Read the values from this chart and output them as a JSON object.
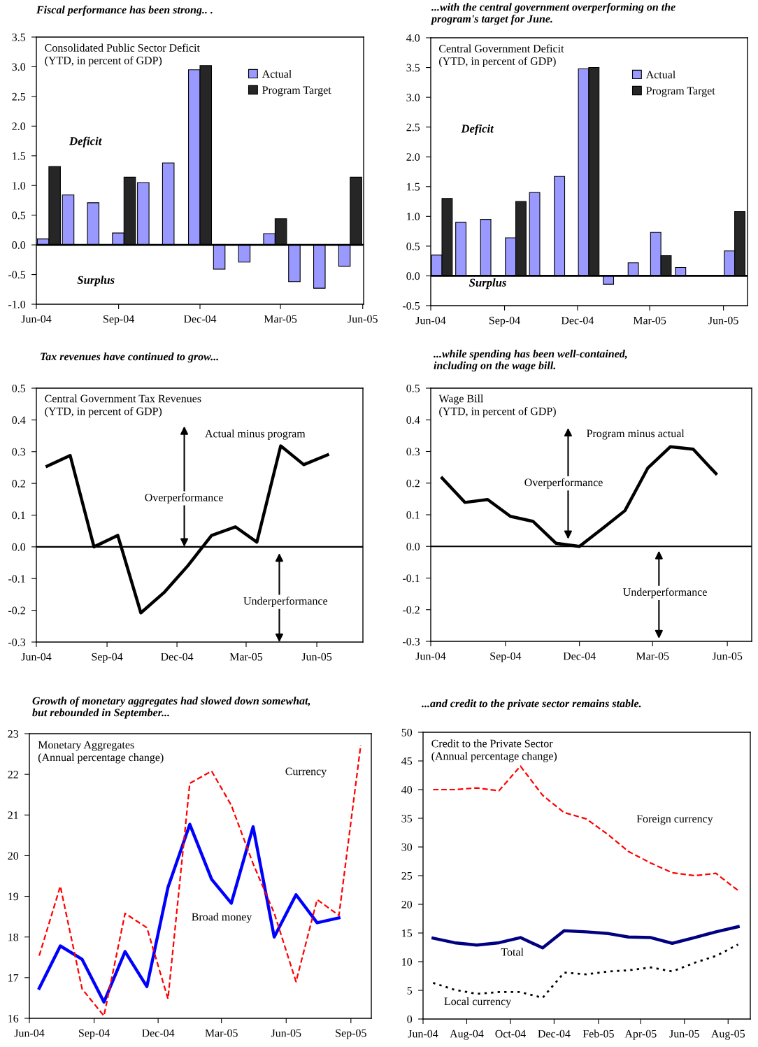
{
  "chart_data": [
    {
      "type": "bar",
      "title": "Fiscal performance has been strong.. .",
      "subtitle": "Consolidated Public Sector Deficit\n(YTD, in percent of GDP)",
      "x": [
        "2004-06-15",
        "2004-07-13",
        "2004-08-10",
        "2004-09-07",
        "2004-10-05",
        "2004-11-02",
        "2004-12-01",
        "2004-12-29",
        "2005-01-26",
        "2005-02-23",
        "2005-03-23",
        "2005-04-20",
        "2005-05-18"
      ],
      "series": [
        {
          "name": "Actual",
          "color": "#9999ff",
          "values": [
            0.1,
            0.84,
            0.71,
            0.2,
            1.05,
            1.38,
            2.95,
            -0.41,
            -0.29,
            0.19,
            -0.62,
            -0.73,
            -0.36
          ]
        },
        {
          "name": "Program Target",
          "color": "#262626",
          "values": [
            1.32,
            null,
            null,
            1.14,
            null,
            null,
            3.02,
            null,
            null,
            0.44,
            null,
            null,
            1.14
          ]
        }
      ],
      "xlim": [
        "2004-06-01",
        "2005-06-02"
      ],
      "xticks": [
        {
          "value": "2004-06-01",
          "label": "Jun-04"
        },
        {
          "value": "2004-09-01",
          "label": "Sep-04"
        },
        {
          "value": "2004-12-01",
          "label": "Dec-04"
        },
        {
          "value": "2005-03-01",
          "label": "Mar-05"
        },
        {
          "value": "2005-06-01",
          "label": "Jun-05"
        }
      ],
      "ylim": [
        -1.0,
        3.5
      ],
      "yticks": [
        {
          "value": -1,
          "label": "-1.0"
        },
        {
          "value": -0.5,
          "label": "-0.5"
        },
        {
          "value": 0,
          "label": "0.0"
        },
        {
          "value": 0.5,
          "label": "0.5"
        },
        {
          "value": 1,
          "label": "1.0"
        },
        {
          "value": 1.5,
          "label": "1.5"
        },
        {
          "value": 2,
          "label": "2.0"
        },
        {
          "value": 2.5,
          "label": "2.5"
        },
        {
          "value": 3,
          "label": "3.0"
        },
        {
          "value": 3.5,
          "label": "3.5"
        }
      ],
      "ref_lines": [
        {
          "axis": "y",
          "value": 0,
          "color": "#000000"
        }
      ],
      "annotations": [
        "Deficit",
        "Surplus"
      ],
      "legend": "upper right"
    },
    {
      "type": "bar",
      "title": "...with the central government overperforming on the\nprogram's target for June.",
      "subtitle": "Central Government Deficit\n(YTD, in percent of GDP)",
      "x": [
        "2004-06-15",
        "2004-07-15",
        "2004-08-15",
        "2004-09-15",
        "2004-10-15",
        "2004-11-15",
        "2004-12-15",
        "2005-01-15",
        "2005-02-15",
        "2005-03-15",
        "2005-04-15",
        "2005-05-15",
        "2005-06-15"
      ],
      "series": [
        {
          "name": "Actual",
          "color": "#9999ff",
          "values": [
            0.35,
            0.9,
            0.95,
            0.64,
            1.4,
            1.67,
            3.48,
            -0.14,
            0.22,
            0.73,
            0.14,
            null,
            0.42
          ]
        },
        {
          "name": "Program Target",
          "color": "#262626",
          "values": [
            1.3,
            null,
            null,
            1.25,
            null,
            null,
            3.5,
            null,
            null,
            0.34,
            null,
            null,
            1.08
          ]
        }
      ],
      "xlim": [
        "2004-06-01",
        "2005-07-01"
      ],
      "xticks": [
        {
          "value": "2004-06-01",
          "label": "Jun-04"
        },
        {
          "value": "2004-09-01",
          "label": "Sep-04"
        },
        {
          "value": "2004-12-01",
          "label": "Dec-04"
        },
        {
          "value": "2005-03-01",
          "label": "Mar-05"
        },
        {
          "value": "2005-06-01",
          "label": "Jun-05"
        }
      ],
      "ylim": [
        -0.5,
        4.0
      ],
      "yticks": [
        {
          "value": -0.5,
          "label": "-0.5"
        },
        {
          "value": 0,
          "label": "0.0"
        },
        {
          "value": 0.5,
          "label": "0.5"
        },
        {
          "value": 1,
          "label": "1.0"
        },
        {
          "value": 1.5,
          "label": "1.5"
        },
        {
          "value": 2,
          "label": "2.0"
        },
        {
          "value": 2.5,
          "label": "2.5"
        },
        {
          "value": 3,
          "label": "3.0"
        },
        {
          "value": 3.5,
          "label": "3.5"
        },
        {
          "value": 4,
          "label": "4.0"
        }
      ],
      "ref_lines": [
        {
          "axis": "y",
          "value": 0,
          "color": "#000000"
        }
      ],
      "annotations": [
        "Deficit",
        "Surplus"
      ],
      "legend": "upper right"
    },
    {
      "type": "line",
      "title": "Tax revenues have continued to grow...",
      "subtitle": "Central Government Tax Revenues\n(YTD, in percent of GDP)",
      "x": [
        "2004-06-15",
        "2004-07-15",
        "2004-08-15",
        "2004-09-15",
        "2004-10-15",
        "2004-11-15",
        "2004-12-15",
        "2005-01-15",
        "2005-02-15",
        "2005-03-15",
        "2005-04-15",
        "2005-05-15",
        "2005-06-15"
      ],
      "series": [
        {
          "name": "Actual minus program",
          "color": "#000000",
          "line_style": "solid",
          "values": [
            0.254,
            0.288,
            0.0,
            0.036,
            -0.208,
            -0.142,
            -0.06,
            0.036,
            0.063,
            0.015,
            0.318,
            0.259,
            0.29
          ]
        }
      ],
      "xlim": [
        "2004-06-01",
        "2005-07-31"
      ],
      "xticks": [
        {
          "value": "2004-06-01",
          "label": "Jun-04"
        },
        {
          "value": "2004-09-01",
          "label": "Sep-04"
        },
        {
          "value": "2004-12-01",
          "label": "Dec-04"
        },
        {
          "value": "2005-03-01",
          "label": "Mar-05"
        },
        {
          "value": "2005-06-01",
          "label": "Jun-05"
        }
      ],
      "ylim": [
        -0.3,
        0.5
      ],
      "yticks": [
        {
          "value": -0.3,
          "label": "-0.3"
        },
        {
          "value": -0.2,
          "label": "-0.2"
        },
        {
          "value": -0.1,
          "label": "-0.1"
        },
        {
          "value": 0,
          "label": "0.0"
        },
        {
          "value": 0.1,
          "label": "0.1"
        },
        {
          "value": 0.2,
          "label": "0.2"
        },
        {
          "value": 0.3,
          "label": "0.3"
        },
        {
          "value": 0.4,
          "label": "0.4"
        },
        {
          "value": 0.5,
          "label": "0.5"
        }
      ],
      "ref_lines": [
        {
          "axis": "y",
          "value": 0,
          "color": "#000000"
        }
      ],
      "annotations": [
        "Overperformance",
        "Underperformance"
      ]
    },
    {
      "type": "line",
      "title": "...while spending has been well-contained,\nincluding on the wage bill.",
      "subtitle": "Wage Bill\n(YTD, in percent of GDP)",
      "x": [
        "2004-06-15",
        "2004-07-13",
        "2004-08-10",
        "2004-09-07",
        "2004-10-05",
        "2004-11-02",
        "2004-12-01",
        "2004-12-29",
        "2005-01-26",
        "2005-02-23",
        "2005-03-23",
        "2005-04-20",
        "2005-05-18"
      ],
      "series": [
        {
          "name": "Program minus actual",
          "color": "#000000",
          "line_style": "solid",
          "values": [
            0.216,
            0.139,
            0.148,
            0.095,
            0.079,
            0.01,
            0.0,
            0.056,
            0.113,
            0.247,
            0.315,
            0.307,
            0.23
          ]
        }
      ],
      "xlim": [
        "2004-06-01",
        "2005-07-01"
      ],
      "xticks": [
        {
          "value": "2004-06-01",
          "label": "Jun-04"
        },
        {
          "value": "2004-09-01",
          "label": "Sep-04"
        },
        {
          "value": "2004-12-01",
          "label": "Dec-04"
        },
        {
          "value": "2005-03-01",
          "label": "Mar-05"
        },
        {
          "value": "2005-06-01",
          "label": "Jun-05"
        }
      ],
      "ylim": [
        -0.3,
        0.5
      ],
      "yticks": [
        {
          "value": -0.3,
          "label": "-0.3"
        },
        {
          "value": -0.2,
          "label": "-0.2"
        },
        {
          "value": -0.1,
          "label": "-0.1"
        },
        {
          "value": 0,
          "label": "0.0"
        },
        {
          "value": 0.1,
          "label": "0.1"
        },
        {
          "value": 0.2,
          "label": "0.2"
        },
        {
          "value": 0.3,
          "label": "0.3"
        },
        {
          "value": 0.4,
          "label": "0.4"
        },
        {
          "value": 0.5,
          "label": "0.5"
        }
      ],
      "ref_lines": [
        {
          "axis": "y",
          "value": 0,
          "color": "#000000"
        }
      ],
      "annotations": [
        "Overperformance",
        "Underperformance"
      ]
    },
    {
      "type": "line",
      "title": "Growth of monetary aggregates had slowed down somewhat,\nbut rebounded in September...",
      "subtitle": "Monetary Aggregates\n(Annual percentage change)",
      "x": [
        "2004-06-15",
        "2004-07-15",
        "2004-08-15",
        "2004-09-15",
        "2004-10-15",
        "2004-11-15",
        "2004-12-15",
        "2005-01-15",
        "2005-02-15",
        "2005-03-15",
        "2005-04-15",
        "2005-05-15",
        "2005-06-15",
        "2005-07-15",
        "2005-08-15",
        "2005-09-15"
      ],
      "series": [
        {
          "name": "Broad money",
          "color": "#0000ff",
          "line_style": "solid",
          "values": [
            16.74,
            17.78,
            17.45,
            16.4,
            17.64,
            16.78,
            19.22,
            20.77,
            19.42,
            18.83,
            20.71,
            18.0,
            19.04,
            18.35,
            18.47,
            null
          ]
        },
        {
          "name": "Currency",
          "color": "#ff0000",
          "line_style": "dashed",
          "values": [
            17.54,
            19.25,
            16.72,
            16.06,
            18.58,
            18.23,
            16.48,
            21.78,
            22.08,
            21.24,
            19.8,
            18.59,
            16.9,
            18.92,
            18.53,
            22.72
          ]
        }
      ],
      "xlim": [
        "2004-06-01",
        "2005-09-30"
      ],
      "xticks": [
        {
          "value": "2004-06-01",
          "label": "Jun-04"
        },
        {
          "value": "2004-09-01",
          "label": "Sep-04"
        },
        {
          "value": "2004-12-01",
          "label": "Dec-04"
        },
        {
          "value": "2005-03-01",
          "label": "Mar-05"
        },
        {
          "value": "2005-06-01",
          "label": "Jun-05"
        },
        {
          "value": "2005-09-01",
          "label": "Sep-05"
        }
      ],
      "ylim": [
        16,
        23
      ],
      "yticks": [
        16,
        17,
        18,
        19,
        20,
        21,
        22,
        23
      ]
    },
    {
      "type": "line",
      "title": "...and credit to the private sector remains stable.",
      "subtitle": "Credit to the Private Sector\n(Annual percentage change)",
      "x": [
        "2004-06-15",
        "2004-07-15",
        "2004-08-15",
        "2004-09-15",
        "2004-10-15",
        "2004-11-15",
        "2004-12-15",
        "2005-01-15",
        "2005-02-15",
        "2005-03-15",
        "2005-04-15",
        "2005-05-15",
        "2005-06-15",
        "2005-07-15",
        "2005-08-15"
      ],
      "series": [
        {
          "name": "Foreign currency",
          "color": "#ff0000",
          "line_style": "dashed",
          "values": [
            40.0,
            40.0,
            40.3,
            39.8,
            44.1,
            39.0,
            36.0,
            34.9,
            32.1,
            29.2,
            27.2,
            25.5,
            25.0,
            25.4,
            22.4
          ]
        },
        {
          "name": "Total",
          "color": "#000080",
          "line_style": "solid",
          "values": [
            14.1,
            13.3,
            12.9,
            13.3,
            14.2,
            12.4,
            15.4,
            15.2,
            14.9,
            14.3,
            14.2,
            13.2,
            14.2,
            15.2,
            16.1
          ]
        },
        {
          "name": "Local currency",
          "color": "#000000",
          "line_style": "dotted",
          "values": [
            6.3,
            5.1,
            4.4,
            4.7,
            4.7,
            3.7,
            8.1,
            7.8,
            8.3,
            8.5,
            9.0,
            8.3,
            9.8,
            11.0,
            13.0
          ]
        }
      ],
      "xlim": [
        "2004-06-01",
        "2005-09-01"
      ],
      "xticks": [
        {
          "value": "2004-06-01",
          "label": "Jun-04"
        },
        {
          "value": "2004-08-01",
          "label": "Aug-04"
        },
        {
          "value": "2004-10-01",
          "label": "Oct-04"
        },
        {
          "value": "2004-12-01",
          "label": "Dec-04"
        },
        {
          "value": "2005-02-01",
          "label": "Feb-05"
        },
        {
          "value": "2005-04-01",
          "label": "Apr-05"
        },
        {
          "value": "2005-06-01",
          "label": "Jun-05"
        },
        {
          "value": "2005-08-01",
          "label": "Aug-05"
        }
      ],
      "ylim": [
        0,
        50
      ],
      "yticks": [
        0,
        5,
        10,
        15,
        20,
        25,
        30,
        35,
        40,
        45,
        50
      ]
    }
  ]
}
